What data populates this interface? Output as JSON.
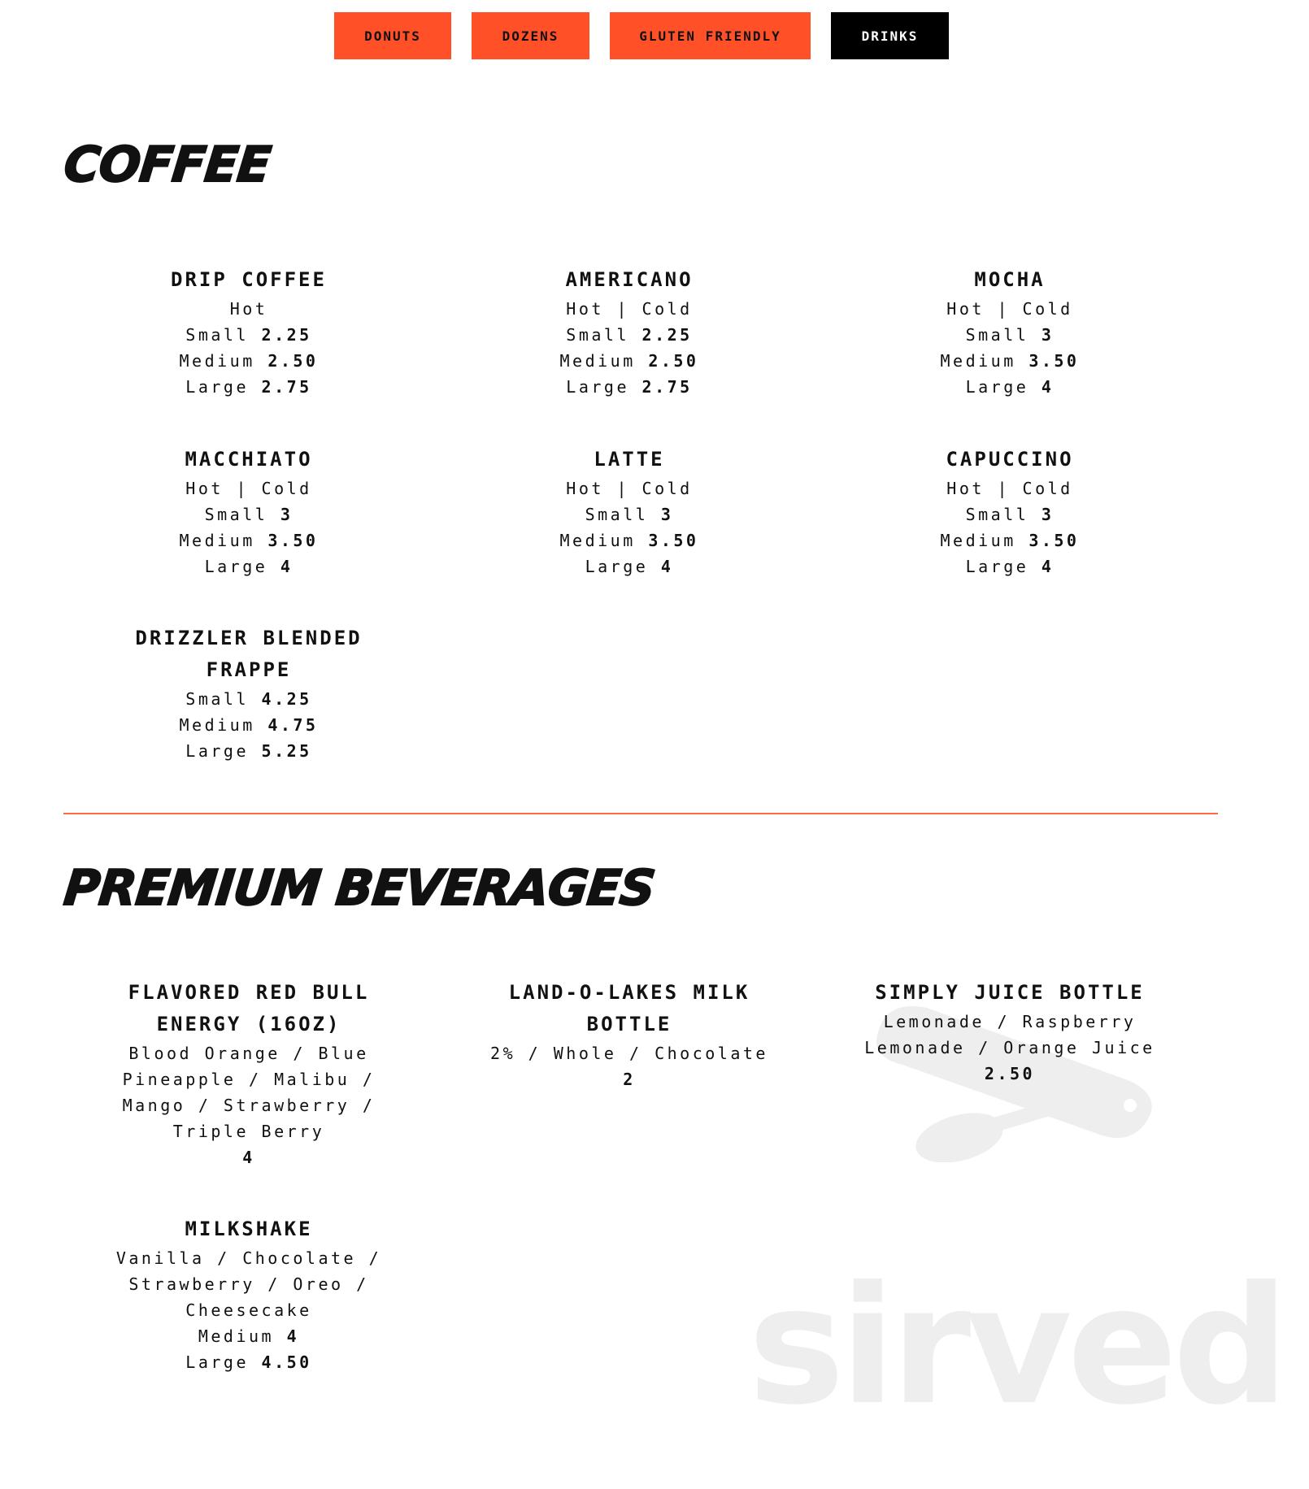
{
  "nav": {
    "items": [
      {
        "label": "DONUTS",
        "active": false
      },
      {
        "label": "DOZENS",
        "active": false
      },
      {
        "label": "GLUTEN FRIENDLY",
        "active": false
      },
      {
        "label": "DRINKS",
        "active": true
      }
    ],
    "accent": "#ff5028",
    "active_bg": "#000000"
  },
  "sections": [
    {
      "title": "COFFEE",
      "items": [
        {
          "name": "DRIP COFFEE",
          "lines": [
            {
              "text": "Hot"
            },
            {
              "label": "Small",
              "price": "2.25"
            },
            {
              "label": "Medium",
              "price": "2.50"
            },
            {
              "label": "Large",
              "price": "2.75"
            }
          ]
        },
        {
          "name": "AMERICANO",
          "lines": [
            {
              "text": "Hot | Cold"
            },
            {
              "label": "Small",
              "price": "2.25"
            },
            {
              "label": "Medium",
              "price": "2.50"
            },
            {
              "label": "Large",
              "price": "2.75"
            }
          ]
        },
        {
          "name": "MOCHA",
          "lines": [
            {
              "text": "Hot | Cold"
            },
            {
              "label": "Small",
              "price": "3"
            },
            {
              "label": "Medium",
              "price": "3.50"
            },
            {
              "label": "Large",
              "price": "4"
            }
          ]
        },
        {
          "name": "MACCHIATO",
          "lines": [
            {
              "text": "Hot | Cold"
            },
            {
              "label": "Small",
              "price": "3"
            },
            {
              "label": "Medium",
              "price": "3.50"
            },
            {
              "label": "Large",
              "price": "4"
            }
          ]
        },
        {
          "name": "LATTE",
          "lines": [
            {
              "text": "Hot | Cold"
            },
            {
              "label": "Small",
              "price": "3"
            },
            {
              "label": "Medium",
              "price": "3.50"
            },
            {
              "label": "Large",
              "price": "4"
            }
          ]
        },
        {
          "name": "CAPUCCINO",
          "lines": [
            {
              "text": "Hot | Cold"
            },
            {
              "label": "Small",
              "price": "3"
            },
            {
              "label": "Medium",
              "price": "3.50"
            },
            {
              "label": "Large",
              "price": "4"
            }
          ]
        },
        {
          "name": "DRIZZLER BLENDED FRAPPE",
          "lines": [
            {
              "label": "Small",
              "price": "4.25"
            },
            {
              "label": "Medium",
              "price": "4.75"
            },
            {
              "label": "Large",
              "price": "5.25"
            }
          ]
        }
      ]
    },
    {
      "title": "PREMIUM BEVERAGES",
      "items": [
        {
          "name": "FLAVORED RED BULL ENERGY (16OZ)",
          "lines": [
            {
              "text": "Blood Orange / Blue Pineapple / Malibu / Mango / Strawberry / Triple Berry"
            },
            {
              "label": "",
              "price": "4"
            }
          ]
        },
        {
          "name": "LAND-O-LAKES MILK BOTTLE",
          "lines": [
            {
              "text": "2% / Whole / Chocolate"
            },
            {
              "label": "",
              "price": "2"
            }
          ]
        },
        {
          "name": "SIMPLY JUICE BOTTLE",
          "lines": [
            {
              "text": "Lemonade / Raspberry Lemonade / Orange Juice"
            },
            {
              "label": "",
              "price": "2.50"
            }
          ]
        },
        {
          "name": "MILKSHAKE",
          "lines": [
            {
              "text": "Vanilla / Chocolate / Strawberry / Oreo / Cheesecake"
            },
            {
              "label": "Medium",
              "price": "4"
            },
            {
              "label": "Large",
              "price": "4.50"
            }
          ]
        }
      ]
    }
  ],
  "watermark": "sirved"
}
